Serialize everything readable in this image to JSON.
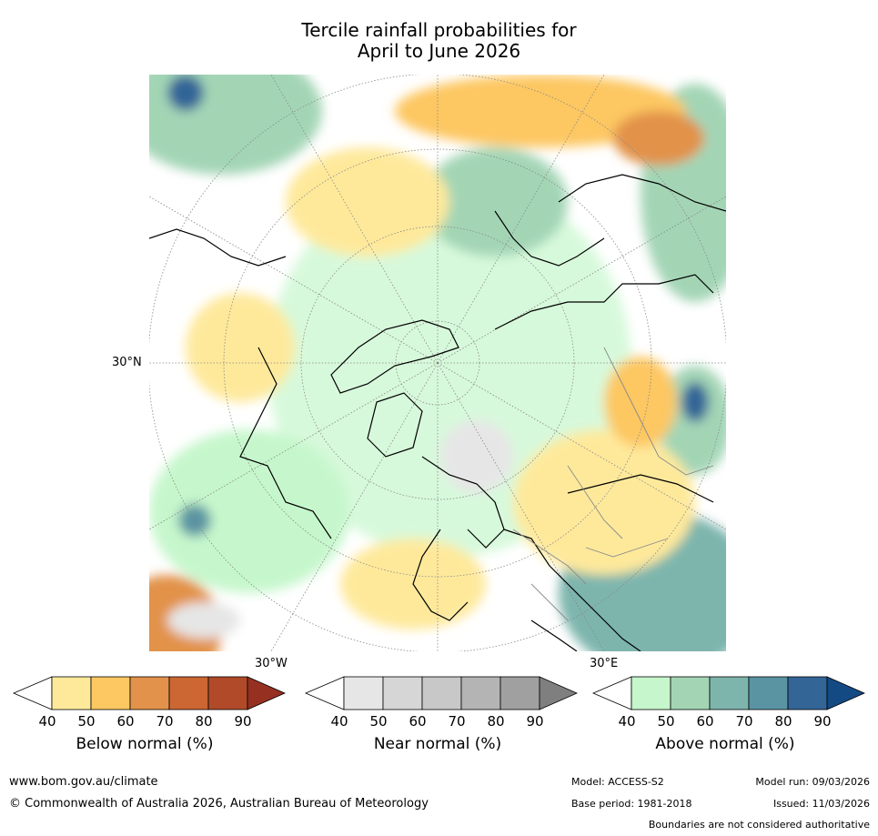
{
  "title": {
    "line1": "Tercile rainfall probabilities for",
    "line2": "April to June 2026"
  },
  "map": {
    "projection": "north polar stereographic",
    "labels": {
      "lat_30n": "30°N",
      "lon_30w": "30°W",
      "lon_30e": "30°E"
    },
    "colors": {
      "land_outline": "#000000",
      "borders": "#8a8a8a",
      "graticule": "#888888"
    }
  },
  "legends": [
    {
      "caption": "Below normal (%)",
      "ticks": [
        "40",
        "50",
        "60",
        "70",
        "80",
        "90"
      ],
      "colors": [
        "#ffffff",
        "#fee99b",
        "#fdc762",
        "#e2924a",
        "#cc6633",
        "#b04a29",
        "#963021"
      ]
    },
    {
      "caption": "Near normal (%)",
      "ticks": [
        "40",
        "50",
        "60",
        "70",
        "80",
        "90"
      ],
      "colors": [
        "#ffffff",
        "#e6e6e6",
        "#d6d6d6",
        "#c8c8c8",
        "#b4b4b4",
        "#a0a0a0",
        "#7f7f7f"
      ]
    },
    {
      "caption": "Above normal (%)",
      "ticks": [
        "40",
        "50",
        "60",
        "70",
        "80",
        "90"
      ],
      "colors": [
        "#ffffff",
        "#c6f7cc",
        "#a3d5b5",
        "#7db5ad",
        "#5a94a2",
        "#336597",
        "#134a84"
      ]
    }
  ],
  "footer": {
    "website": "www.bom.gov.au/climate",
    "copyright": "© Commonwealth of Australia 2026, Australian Bureau of Meteorology",
    "model": "Model: ACCESS-S2",
    "base_period": "Base period: 1981-2018",
    "model_run": "Model run: 09/03/2026",
    "issued": "Issued: 11/03/2026",
    "disclaimer": "Boundaries are not considered authoritative"
  }
}
